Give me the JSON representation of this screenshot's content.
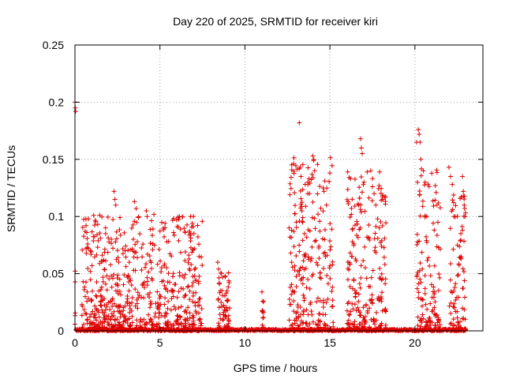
{
  "chart_data": {
    "type": "scatter",
    "title": "Day 220 of 2025, SRMTID for receiver kiri",
    "xlabel": "GPS time / hours",
    "ylabel": "SRMTID / TECUs",
    "xlim": [
      0,
      24
    ],
    "ylim": [
      0,
      0.25
    ],
    "x_ticks": [
      0,
      5,
      10,
      15,
      20
    ],
    "x_tick_labels": [
      "0",
      "5",
      "10",
      "15",
      "20"
    ],
    "y_ticks": [
      0,
      0.05,
      0.1,
      0.15,
      0.2,
      0.25
    ],
    "y_tick_labels": [
      "0",
      "0.05",
      "0.1",
      "0.15",
      "0.2",
      "0.25"
    ],
    "grid": true,
    "marker": "plus",
    "marker_color": "#dd0000",
    "active_intervals": [
      {
        "x0": 0.0,
        "x1": 0.05,
        "ymax": 0.2
      },
      {
        "x0": 0.4,
        "x1": 7.5,
        "ymax": 0.12
      },
      {
        "x0": 8.4,
        "x1": 9.1,
        "ymax": 0.06
      },
      {
        "x0": 11.0,
        "x1": 11.1,
        "ymax": 0.035
      },
      {
        "x0": 12.6,
        "x1": 15.2,
        "ymax": 0.18
      },
      {
        "x0": 16.0,
        "x1": 18.3,
        "ymax": 0.165
      },
      {
        "x0": 20.1,
        "x1": 21.5,
        "ymax": 0.175
      },
      {
        "x0": 22.0,
        "x1": 23.0,
        "ymax": 0.145
      }
    ],
    "points": [
      [
        0.0,
        0.2
      ],
      [
        0.02,
        0.195
      ],
      [
        0.04,
        0.192
      ],
      [
        0.6,
        0.087
      ],
      [
        0.7,
        0.086
      ],
      [
        0.75,
        0.076
      ],
      [
        0.8,
        0.072
      ],
      [
        0.9,
        0.052
      ],
      [
        1.1,
        0.101
      ],
      [
        1.3,
        0.084
      ],
      [
        1.5,
        0.081
      ],
      [
        1.8,
        0.09
      ],
      [
        2.3,
        0.122
      ],
      [
        2.35,
        0.115
      ],
      [
        2.4,
        0.11
      ],
      [
        3.5,
        0.113
      ],
      [
        3.6,
        0.107
      ],
      [
        4.2,
        0.105
      ],
      [
        4.25,
        0.1
      ],
      [
        5.3,
        0.094
      ],
      [
        5.8,
        0.086
      ],
      [
        6.2,
        0.089
      ],
      [
        6.8,
        0.1
      ],
      [
        6.9,
        0.094
      ],
      [
        7.0,
        0.085
      ],
      [
        7.3,
        0.065
      ],
      [
        8.4,
        0.06
      ],
      [
        8.45,
        0.054
      ],
      [
        8.5,
        0.041
      ],
      [
        8.55,
        0.035
      ],
      [
        8.9,
        0.033
      ],
      [
        9.0,
        0.027
      ],
      [
        9.05,
        0.009
      ],
      [
        11.0,
        0.034
      ],
      [
        11.05,
        0.026
      ],
      [
        11.1,
        0.016
      ],
      [
        11.02,
        0.005
      ],
      [
        12.6,
        0.09
      ],
      [
        12.65,
        0.082
      ],
      [
        12.7,
        0.068
      ],
      [
        12.75,
        0.06
      ],
      [
        12.8,
        0.035
      ],
      [
        13.2,
        0.182
      ],
      [
        13.25,
        0.143
      ],
      [
        13.3,
        0.135
      ],
      [
        13.35,
        0.105
      ],
      [
        13.4,
        0.095
      ],
      [
        13.5,
        0.085
      ],
      [
        13.7,
        0.13
      ],
      [
        13.8,
        0.12
      ],
      [
        14.0,
        0.153
      ],
      [
        14.1,
        0.14
      ],
      [
        14.3,
        0.102
      ],
      [
        14.6,
        0.125
      ],
      [
        14.65,
        0.122
      ],
      [
        14.7,
        0.131
      ],
      [
        14.8,
        0.11
      ],
      [
        16.8,
        0.168
      ],
      [
        16.85,
        0.16
      ],
      [
        16.9,
        0.155
      ],
      [
        17.0,
        0.13
      ],
      [
        16.7,
        0.11
      ],
      [
        17.4,
        0.14
      ],
      [
        17.5,
        0.126
      ],
      [
        17.6,
        0.12
      ],
      [
        17.7,
        0.11
      ],
      [
        17.8,
        0.098
      ],
      [
        17.9,
        0.09
      ],
      [
        16.3,
        0.065
      ],
      [
        16.4,
        0.045
      ],
      [
        16.5,
        0.03
      ],
      [
        20.1,
        0.165
      ],
      [
        20.2,
        0.176
      ],
      [
        20.25,
        0.172
      ],
      [
        20.3,
        0.165
      ],
      [
        20.35,
        0.15
      ],
      [
        20.5,
        0.14
      ],
      [
        20.6,
        0.13
      ],
      [
        20.7,
        0.1
      ],
      [
        21.2,
        0.127
      ],
      [
        21.25,
        0.121
      ],
      [
        21.3,
        0.11
      ],
      [
        21.35,
        0.095
      ],
      [
        22.0,
        0.143
      ],
      [
        22.1,
        0.135
      ],
      [
        22.2,
        0.128
      ],
      [
        22.3,
        0.1
      ],
      [
        22.5,
        0.075
      ],
      [
        22.8,
        0.135
      ],
      [
        22.85,
        0.122
      ],
      [
        22.9,
        0.11
      ],
      [
        22.95,
        0.1
      ],
      [
        22.7,
        0.085
      ]
    ]
  }
}
